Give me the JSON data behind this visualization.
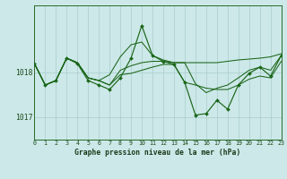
{
  "title": "Graphe pression niveau de la mer (hPa)",
  "bg_color": "#cce8e8",
  "grid_color": "#aacccc",
  "line_color": "#1a6618",
  "xlim": [
    0,
    23
  ],
  "ylim": [
    1016.5,
    1019.5
  ],
  "yticks": [
    1017,
    1018
  ],
  "xticks": [
    0,
    1,
    2,
    3,
    4,
    5,
    6,
    7,
    8,
    9,
    10,
    11,
    12,
    13,
    14,
    15,
    16,
    17,
    18,
    19,
    20,
    21,
    22,
    23
  ],
  "series_main": [
    1018.2,
    1017.72,
    1017.82,
    1018.32,
    1018.2,
    1017.82,
    1017.72,
    1017.62,
    1017.88,
    1018.32,
    1019.05,
    1018.38,
    1018.25,
    1018.18,
    1017.78,
    1017.05,
    1017.08,
    1017.38,
    1017.18,
    1017.72,
    1017.98,
    1018.12,
    1017.92,
    1018.38
  ],
  "series_upper": [
    1018.2,
    1017.72,
    1017.82,
    1018.32,
    1018.22,
    1017.88,
    1017.82,
    1017.95,
    1018.35,
    1018.62,
    1018.68,
    1018.38,
    1018.28,
    1018.22,
    1018.22,
    1018.22,
    1018.22,
    1018.22,
    1018.25,
    1018.28,
    1018.3,
    1018.32,
    1018.35,
    1018.42
  ],
  "series_mid": [
    1018.2,
    1017.72,
    1017.82,
    1018.32,
    1018.22,
    1017.88,
    1017.82,
    1017.72,
    1018.05,
    1018.15,
    1018.22,
    1018.25,
    1018.25,
    1018.22,
    1018.22,
    1017.75,
    1017.55,
    1017.65,
    1017.72,
    1017.88,
    1018.05,
    1018.12,
    1018.05,
    1018.38
  ],
  "series_low": [
    1018.2,
    1017.72,
    1017.82,
    1018.32,
    1018.22,
    1017.88,
    1017.82,
    1017.72,
    1017.95,
    1017.98,
    1018.05,
    1018.12,
    1018.18,
    1018.18,
    1017.78,
    1017.72,
    1017.65,
    1017.62,
    1017.62,
    1017.72,
    1017.85,
    1017.92,
    1017.88,
    1018.25
  ]
}
